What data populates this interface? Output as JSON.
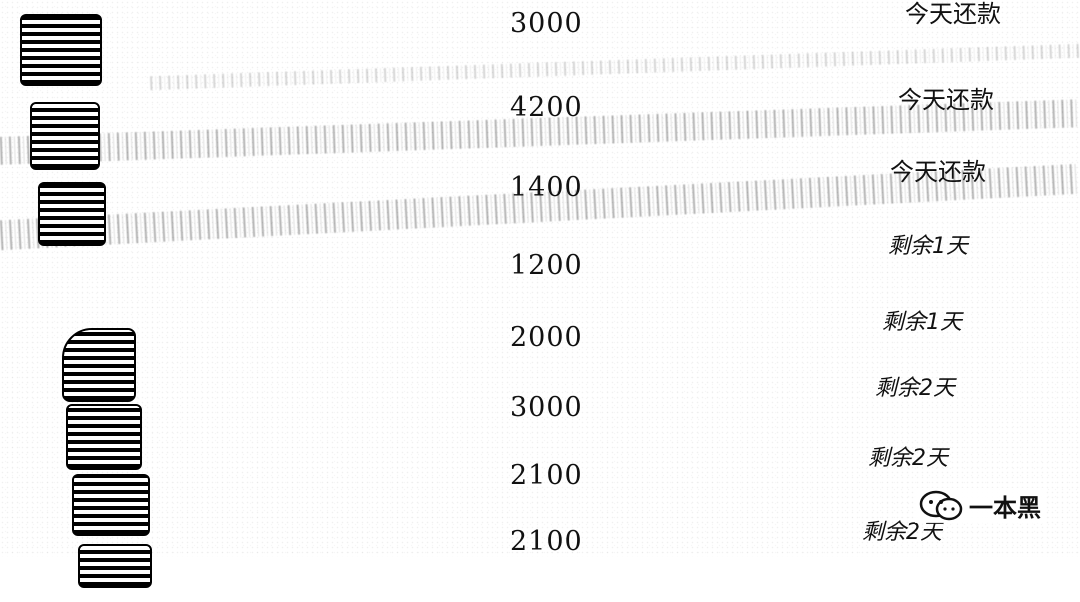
{
  "rows": [
    {
      "name": "",
      "amount": "3000",
      "status": "今天还款"
    },
    {
      "name": "",
      "amount": "4200",
      "status": "今天还款"
    },
    {
      "name": "",
      "amount": "1400",
      "status": "今天还款"
    },
    {
      "name": "",
      "amount": "1200",
      "status": "剩余1天"
    },
    {
      "name": "",
      "amount": "2000",
      "status": "剩余1天"
    },
    {
      "name": "",
      "amount": "3000",
      "status": "剩余2天"
    },
    {
      "name": "",
      "amount": "2100",
      "status": "剩余2天"
    },
    {
      "name": "",
      "amount": "2100",
      "status": "剩余2天"
    }
  ],
  "watermark": {
    "text": "一本黑",
    "icon": "wechat-icon"
  }
}
